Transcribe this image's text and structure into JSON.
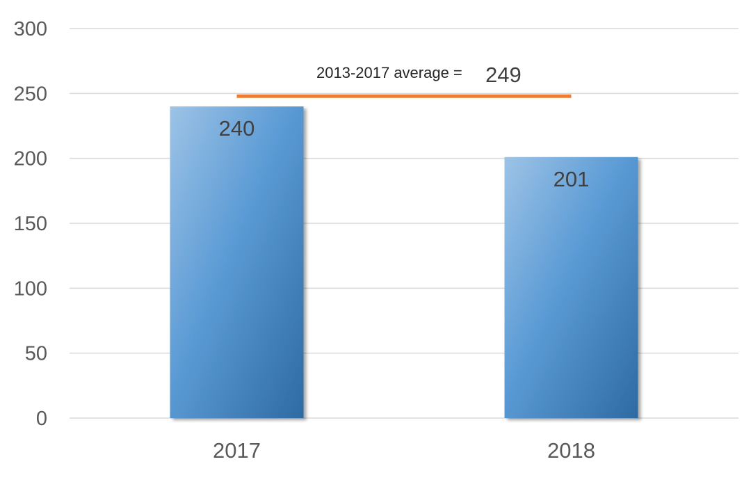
{
  "chart_data": {
    "type": "bar",
    "categories": [
      "2017",
      "2018"
    ],
    "values": [
      240,
      201
    ],
    "data_labels": [
      "240",
      "201"
    ],
    "title": "",
    "xlabel": "",
    "ylabel": "",
    "ylim": [
      0,
      300
    ],
    "yticks": [
      0,
      50,
      100,
      150,
      200,
      250,
      300
    ],
    "ytick_labels": [
      "0",
      "50",
      "100",
      "150",
      "200",
      "250",
      "300"
    ],
    "grid": true,
    "legend": "none",
    "bar_colors": {
      "light": "#9dc3e6",
      "mid": "#5b9bd5",
      "dark": "#2e6aa3"
    },
    "reference_line": {
      "value": 249,
      "color": "#ed7d31",
      "label": "2013-2017 average =",
      "value_label": "249"
    }
  }
}
